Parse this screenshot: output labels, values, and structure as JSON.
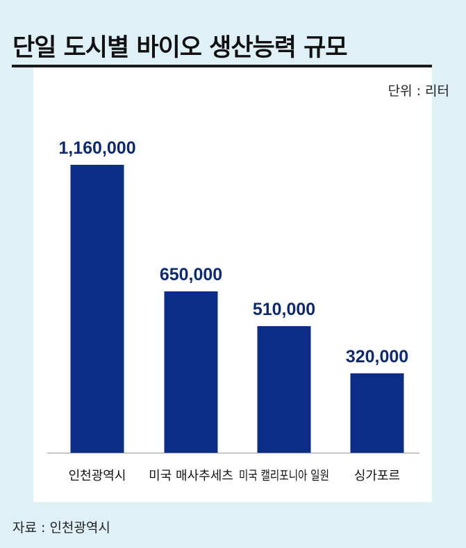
{
  "title": "단일 도시별 바이오 생산능력 규모",
  "unit_label": "단위 : 리터",
  "source": "자료 : 인천광역시",
  "colors": {
    "bar": "#0c2d87",
    "background": "#dff0f7",
    "panel": "#ffffff",
    "value_text": "#0e2a6e"
  },
  "chart_data": {
    "type": "bar",
    "title": "단일 도시별 바이오 생산능력 규모",
    "unit": "리터",
    "categories": [
      "인천광역시",
      "미국 매사추세츠",
      "미국 캘리포니아 일원",
      "싱가포르"
    ],
    "values": [
      1160000,
      650000,
      510000,
      320000
    ],
    "value_labels": [
      "1,160,000",
      "650,000",
      "510,000",
      "320,000"
    ],
    "ylim": [
      0,
      1160000
    ],
    "grid": false,
    "legend": "none"
  }
}
